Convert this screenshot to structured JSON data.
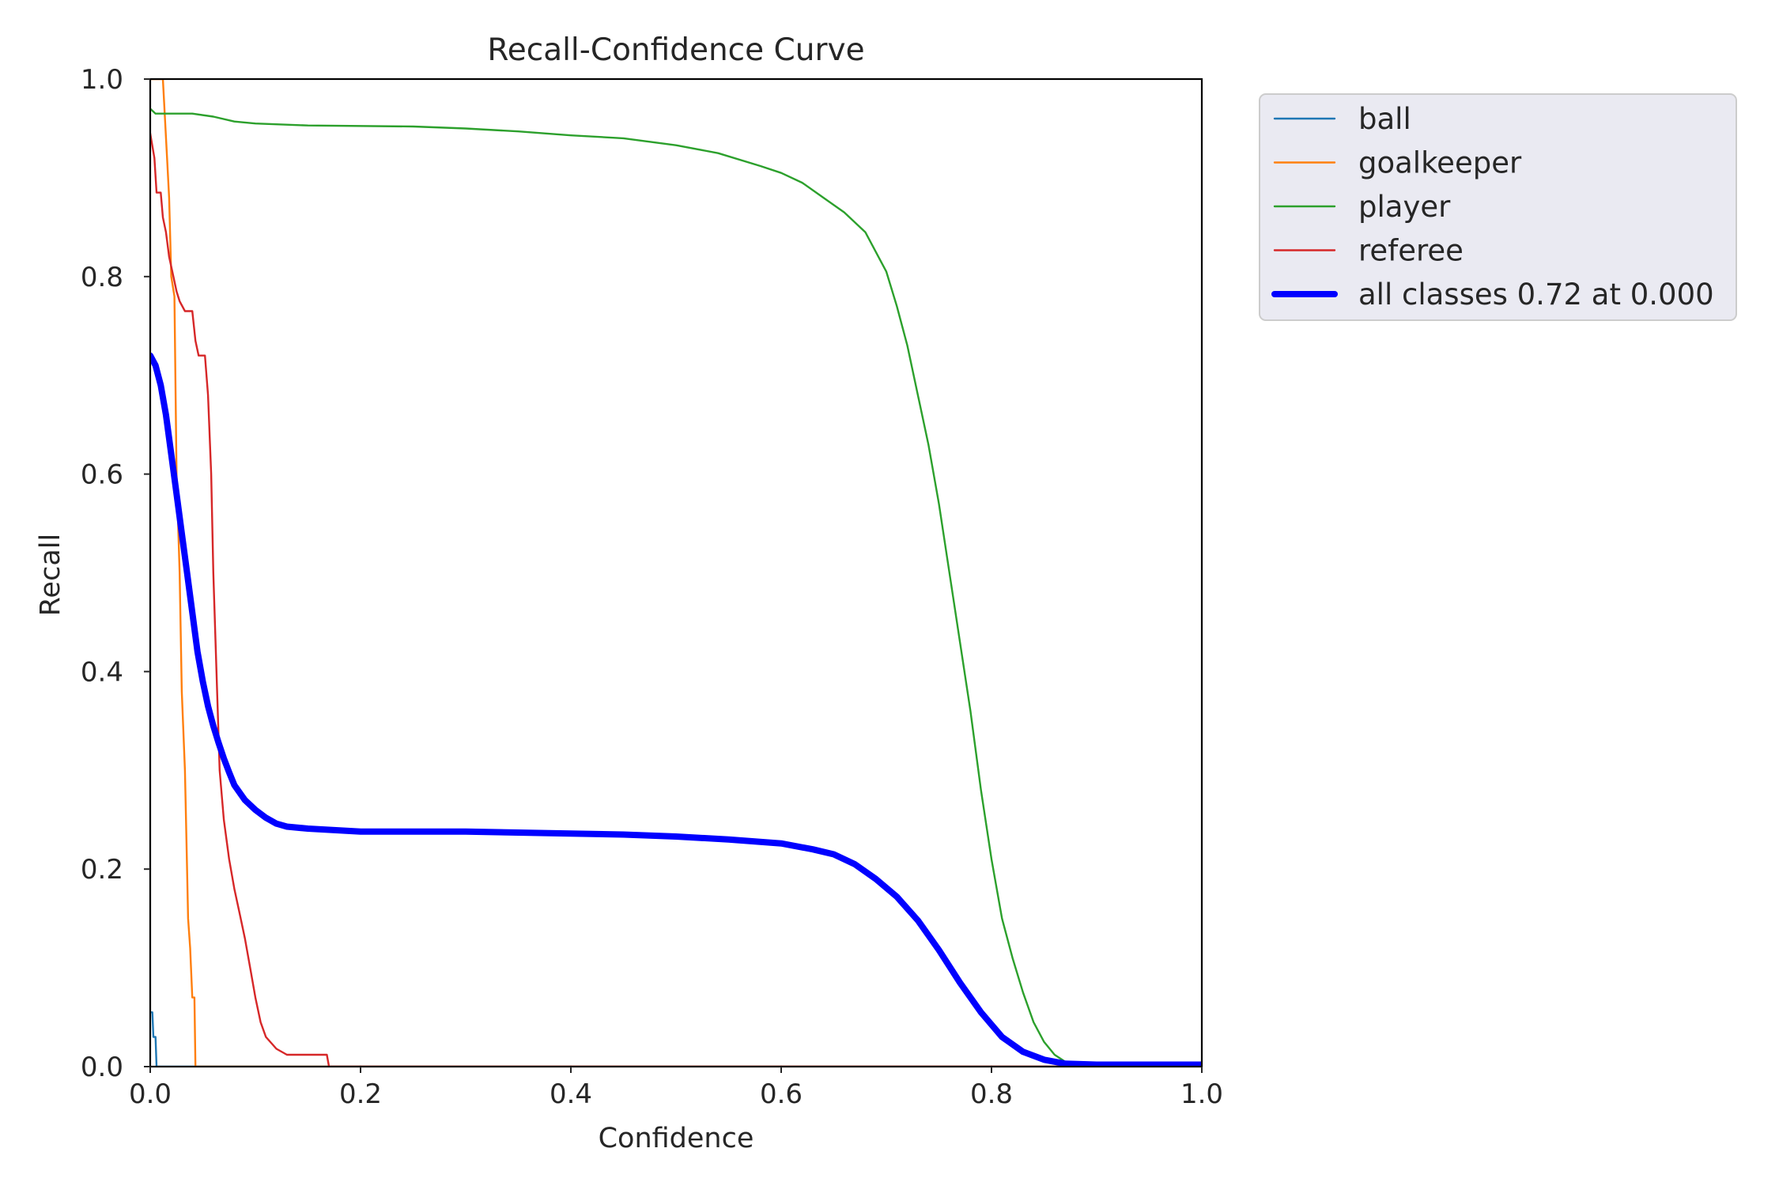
{
  "chart_data": {
    "type": "line",
    "title": "Recall-Confidence Curve",
    "xlabel": "Confidence",
    "ylabel": "Recall",
    "xlim": [
      0.0,
      1.0
    ],
    "ylim": [
      0.0,
      1.0
    ],
    "xticks": [
      "0.0",
      "0.2",
      "0.4",
      "0.6",
      "0.8",
      "1.0"
    ],
    "yticks": [
      "0.0",
      "0.2",
      "0.4",
      "0.6",
      "0.8",
      "1.0"
    ],
    "grid": false,
    "legend_position": "outside-top-right",
    "series": [
      {
        "name": "ball",
        "color": "#1f77b4",
        "width": "thin",
        "points": [
          [
            0.0,
            0.055
          ],
          [
            0.002,
            0.055
          ],
          [
            0.003,
            0.03
          ],
          [
            0.005,
            0.03
          ],
          [
            0.006,
            0.0
          ],
          [
            1.0,
            0.0
          ]
        ]
      },
      {
        "name": "goalkeeper",
        "color": "#ff7f0e",
        "width": "thin",
        "points": [
          [
            0.0,
            1.0
          ],
          [
            0.012,
            1.0
          ],
          [
            0.016,
            0.92
          ],
          [
            0.018,
            0.88
          ],
          [
            0.02,
            0.8
          ],
          [
            0.023,
            0.78
          ],
          [
            0.025,
            0.6
          ],
          [
            0.028,
            0.5
          ],
          [
            0.03,
            0.38
          ],
          [
            0.033,
            0.3
          ],
          [
            0.035,
            0.2
          ],
          [
            0.036,
            0.15
          ],
          [
            0.038,
            0.12
          ],
          [
            0.04,
            0.07
          ],
          [
            0.042,
            0.07
          ],
          [
            0.043,
            0.0
          ],
          [
            1.0,
            0.0
          ]
        ]
      },
      {
        "name": "player",
        "color": "#2ca02c",
        "width": "thin",
        "points": [
          [
            0.0,
            0.97
          ],
          [
            0.005,
            0.965
          ],
          [
            0.04,
            0.965
          ],
          [
            0.06,
            0.962
          ],
          [
            0.08,
            0.957
          ],
          [
            0.1,
            0.955
          ],
          [
            0.15,
            0.953
          ],
          [
            0.25,
            0.952
          ],
          [
            0.3,
            0.95
          ],
          [
            0.35,
            0.947
          ],
          [
            0.4,
            0.943
          ],
          [
            0.45,
            0.94
          ],
          [
            0.5,
            0.933
          ],
          [
            0.54,
            0.925
          ],
          [
            0.58,
            0.912
          ],
          [
            0.6,
            0.905
          ],
          [
            0.62,
            0.895
          ],
          [
            0.64,
            0.88
          ],
          [
            0.66,
            0.865
          ],
          [
            0.68,
            0.845
          ],
          [
            0.7,
            0.805
          ],
          [
            0.71,
            0.77
          ],
          [
            0.72,
            0.73
          ],
          [
            0.73,
            0.68
          ],
          [
            0.74,
            0.63
          ],
          [
            0.75,
            0.57
          ],
          [
            0.76,
            0.5
          ],
          [
            0.77,
            0.43
          ],
          [
            0.78,
            0.36
          ],
          [
            0.79,
            0.28
          ],
          [
            0.8,
            0.21
          ],
          [
            0.81,
            0.15
          ],
          [
            0.82,
            0.11
          ],
          [
            0.83,
            0.075
          ],
          [
            0.84,
            0.045
          ],
          [
            0.85,
            0.025
          ],
          [
            0.86,
            0.012
          ],
          [
            0.87,
            0.005
          ],
          [
            0.88,
            0.002
          ],
          [
            0.9,
            0.0
          ],
          [
            1.0,
            0.0
          ]
        ]
      },
      {
        "name": "referee",
        "color": "#d62728",
        "width": "thin",
        "points": [
          [
            0.0,
            0.945
          ],
          [
            0.004,
            0.92
          ],
          [
            0.006,
            0.885
          ],
          [
            0.01,
            0.885
          ],
          [
            0.012,
            0.86
          ],
          [
            0.015,
            0.845
          ],
          [
            0.018,
            0.82
          ],
          [
            0.022,
            0.8
          ],
          [
            0.025,
            0.785
          ],
          [
            0.028,
            0.775
          ],
          [
            0.033,
            0.765
          ],
          [
            0.04,
            0.765
          ],
          [
            0.043,
            0.735
          ],
          [
            0.046,
            0.72
          ],
          [
            0.052,
            0.72
          ],
          [
            0.055,
            0.68
          ],
          [
            0.058,
            0.6
          ],
          [
            0.06,
            0.5
          ],
          [
            0.063,
            0.4
          ],
          [
            0.066,
            0.3
          ],
          [
            0.07,
            0.25
          ],
          [
            0.075,
            0.21
          ],
          [
            0.08,
            0.18
          ],
          [
            0.085,
            0.155
          ],
          [
            0.09,
            0.13
          ],
          [
            0.095,
            0.1
          ],
          [
            0.1,
            0.07
          ],
          [
            0.105,
            0.045
          ],
          [
            0.11,
            0.03
          ],
          [
            0.12,
            0.018
          ],
          [
            0.13,
            0.012
          ],
          [
            0.168,
            0.012
          ],
          [
            0.17,
            0.0
          ],
          [
            1.0,
            0.0
          ]
        ]
      },
      {
        "name": "all classes 0.72 at 0.000",
        "color": "#0000ff",
        "width": "thick",
        "points": [
          [
            0.0,
            0.72
          ],
          [
            0.005,
            0.71
          ],
          [
            0.01,
            0.69
          ],
          [
            0.015,
            0.66
          ],
          [
            0.02,
            0.62
          ],
          [
            0.025,
            0.58
          ],
          [
            0.03,
            0.54
          ],
          [
            0.035,
            0.5
          ],
          [
            0.04,
            0.46
          ],
          [
            0.045,
            0.42
          ],
          [
            0.05,
            0.39
          ],
          [
            0.055,
            0.365
          ],
          [
            0.06,
            0.345
          ],
          [
            0.065,
            0.328
          ],
          [
            0.07,
            0.312
          ],
          [
            0.075,
            0.298
          ],
          [
            0.08,
            0.285
          ],
          [
            0.09,
            0.27
          ],
          [
            0.1,
            0.26
          ],
          [
            0.11,
            0.252
          ],
          [
            0.12,
            0.246
          ],
          [
            0.13,
            0.243
          ],
          [
            0.15,
            0.241
          ],
          [
            0.2,
            0.238
          ],
          [
            0.3,
            0.238
          ],
          [
            0.4,
            0.236
          ],
          [
            0.45,
            0.235
          ],
          [
            0.5,
            0.233
          ],
          [
            0.55,
            0.23
          ],
          [
            0.6,
            0.226
          ],
          [
            0.63,
            0.22
          ],
          [
            0.65,
            0.215
          ],
          [
            0.67,
            0.205
          ],
          [
            0.69,
            0.19
          ],
          [
            0.71,
            0.172
          ],
          [
            0.73,
            0.148
          ],
          [
            0.75,
            0.118
          ],
          [
            0.77,
            0.085
          ],
          [
            0.79,
            0.055
          ],
          [
            0.81,
            0.03
          ],
          [
            0.83,
            0.015
          ],
          [
            0.85,
            0.007
          ],
          [
            0.87,
            0.003
          ],
          [
            0.9,
            0.002
          ],
          [
            1.0,
            0.002
          ]
        ]
      }
    ]
  }
}
